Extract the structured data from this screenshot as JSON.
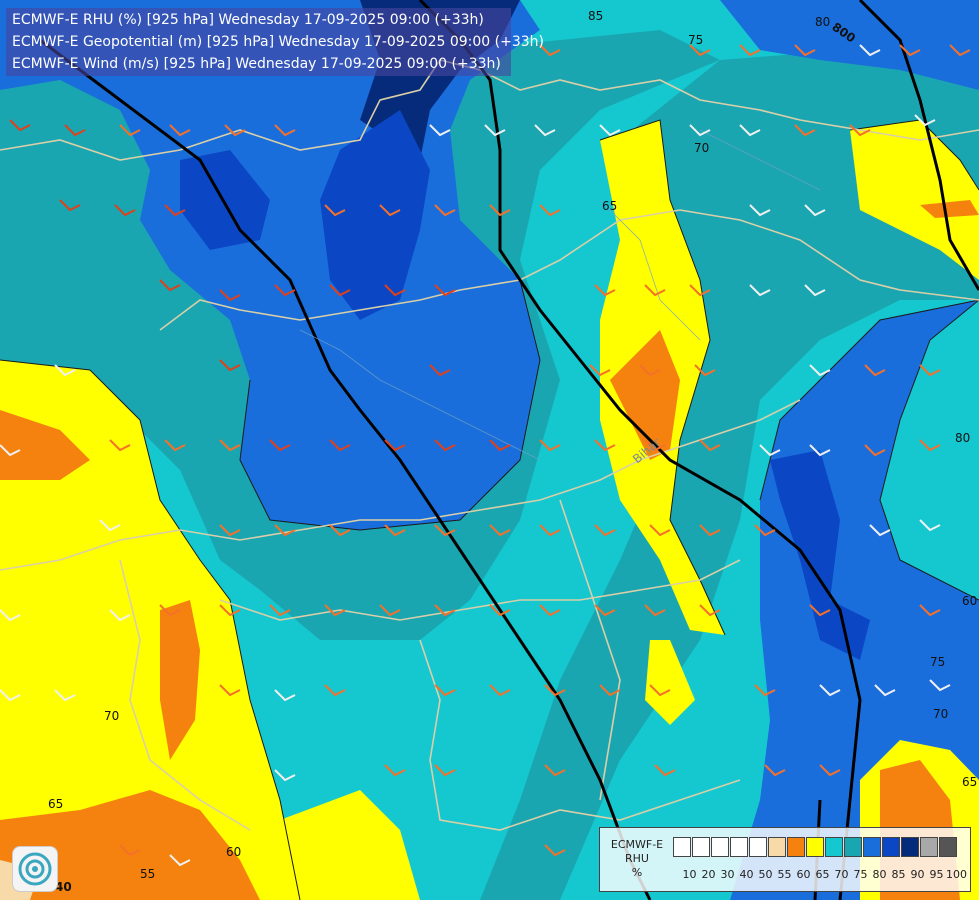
{
  "titles": {
    "line1": "ECMWF-E RHU (%) [925 hPa] Wednesday 17-09-2025 09:00 (+33h)",
    "line2": "ECMWF-E Geopotential (m) [925 hPa] Wednesday 17-09-2025 09:00 (+33h)",
    "line3": "ECMWF-E Wind (m/s) [925 hPa] Wednesday 17-09-2025 09:00 (+33h)"
  },
  "legend": {
    "title_line1": "ECMWF-E",
    "title_line2": "RHU",
    "unit": "%",
    "levels": [
      "10",
      "20",
      "30",
      "40",
      "50",
      "55",
      "60",
      "65",
      "70",
      "75",
      "80",
      "85",
      "90",
      "95",
      "100"
    ],
    "colors": [
      "#ffffff",
      "#ffffff",
      "#ffffff",
      "#ffffff",
      "#ffffff",
      "#f8d9a8",
      "#f5820f",
      "#ffff00",
      "#15c8d0",
      "#1aa6b0",
      "#1a6edc",
      "#0b47c4",
      "#062b7a",
      "#a8a8a8",
      "#555555"
    ]
  },
  "map_labels": {
    "contour_labels": [
      "85",
      "80",
      "800",
      "75",
      "70",
      "65",
      "80",
      "75",
      "70",
      "65",
      "60",
      "70",
      "65",
      "60",
      "55",
      "40"
    ],
    "place_label": "Bihar"
  }
}
